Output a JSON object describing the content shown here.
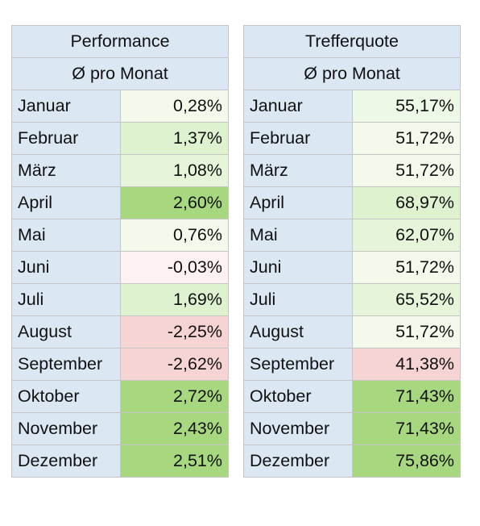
{
  "chart_data": [
    {
      "type": "table",
      "title": "Performance",
      "subtitle": "Ø pro Monat",
      "rows": [
        {
          "label": "Januar",
          "value": "0,28%",
          "color": "#f3faec"
        },
        {
          "label": "Februar",
          "value": "1,37%",
          "color": "#dff2d0"
        },
        {
          "label": "März",
          "value": "1,08%",
          "color": "#e6f5da"
        },
        {
          "label": "April",
          "value": "2,60%",
          "color": "#a7d880"
        },
        {
          "label": "Mai",
          "value": "0,76%",
          "color": "#f3faec"
        },
        {
          "label": "Juni",
          "value": "-0,03%",
          "color": "#fdf1f1"
        },
        {
          "label": "Juli",
          "value": "1,69%",
          "color": "#dff2d0"
        },
        {
          "label": "August",
          "value": "-2,25%",
          "color": "#f6d4d4"
        },
        {
          "label": "September",
          "value": "-2,62%",
          "color": "#f6d4d4"
        },
        {
          "label": "Oktober",
          "value": "2,72%",
          "color": "#a7d880"
        },
        {
          "label": "November",
          "value": "2,43%",
          "color": "#a7d880"
        },
        {
          "label": "Dezember",
          "value": "2,51%",
          "color": "#a7d880"
        }
      ]
    },
    {
      "type": "table",
      "title": "Trefferquote",
      "subtitle": "Ø pro Monat",
      "rows": [
        {
          "label": "Januar",
          "value": "55,17%",
          "color": "#eef8e6"
        },
        {
          "label": "Februar",
          "value": "51,72%",
          "color": "#f3faec"
        },
        {
          "label": "März",
          "value": "51,72%",
          "color": "#f3faec"
        },
        {
          "label": "April",
          "value": "68,97%",
          "color": "#dff2d0"
        },
        {
          "label": "Mai",
          "value": "62,07%",
          "color": "#e6f5da"
        },
        {
          "label": "Juni",
          "value": "51,72%",
          "color": "#f3faec"
        },
        {
          "label": "Juli",
          "value": "65,52%",
          "color": "#e6f5da"
        },
        {
          "label": "August",
          "value": "51,72%",
          "color": "#f3faec"
        },
        {
          "label": "September",
          "value": "41,38%",
          "color": "#f6d4d4"
        },
        {
          "label": "Oktober",
          "value": "71,43%",
          "color": "#a7d880"
        },
        {
          "label": "November",
          "value": "71,43%",
          "color": "#a7d880"
        },
        {
          "label": "Dezember",
          "value": "75,86%",
          "color": "#a7d880"
        }
      ]
    }
  ]
}
